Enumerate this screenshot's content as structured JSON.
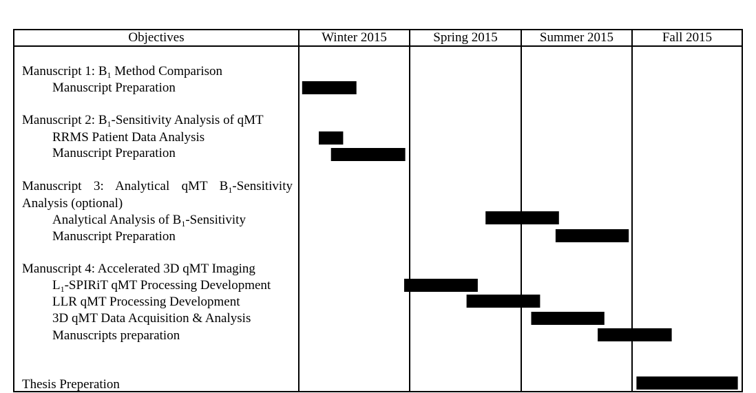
{
  "columns": {
    "objectives": "Objectives",
    "periods": [
      "Winter 2015",
      "Spring 2015",
      "Summer 2015",
      "Fall 2015"
    ]
  },
  "groups": {
    "m1": {
      "pre": "Manuscript 1: B",
      "sub": "1",
      "post": " Method Comparison"
    },
    "m2": {
      "pre": "Manuscript 2: B",
      "sub": "1",
      "post": "-Sensitivity Analysis of qMT"
    },
    "m3": {
      "pre": "Manuscript 3: Analytical qMT B",
      "sub": "1",
      "post": "-Sensitivity",
      "line2": "Analysis (optional)"
    },
    "m4": {
      "pre": "Manuscript 4: Accelerated 3D qMT Imaging"
    },
    "thesis": {
      "pre": "Thesis Preperation"
    }
  },
  "tasks": {
    "m1_prep": "Manuscript Preparation",
    "m2_rrms": "RRMS Patient Data Analysis",
    "m2_prep": "Manuscript Preparation",
    "m3_analysis": {
      "pre": "Analytical Analysis of B",
      "sub": "1",
      "post": "-Sensitivity"
    },
    "m3_prep": "Manuscript Preparation",
    "m4_l1": {
      "pre": "L",
      "sub": "1",
      "post": "-SPIRiT qMT Processing Development"
    },
    "m4_llr": "LLR qMT Processing Development",
    "m4_3d": "3D qMT Data Acquisition & Analysis",
    "m4_prep": "Manuscripts preparation"
  },
  "chart_data": {
    "type": "gantt",
    "time_unit": "quarter (Winter 2015 = 0–1, Spring 2015 = 1–2, Summer 2015 = 2–3, Fall 2015 = 3–4)",
    "x_range": [
      0,
      4
    ],
    "bars": [
      {
        "task": "Manuscript 1 — Manuscript Preparation",
        "start": 0.03,
        "end": 0.52
      },
      {
        "task": "Manuscript 2 — RRMS Patient Data Analysis",
        "start": 0.18,
        "end": 0.4
      },
      {
        "task": "Manuscript 2 — Manuscript Preparation",
        "start": 0.29,
        "end": 0.96
      },
      {
        "task": "Manuscript 3 — Analytical Analysis of B1-Sensitivity",
        "start": 1.68,
        "end": 2.34
      },
      {
        "task": "Manuscript 3 — Manuscript Preparation",
        "start": 2.31,
        "end": 2.97
      },
      {
        "task": "Manuscript 4 — L1-SPIRiT qMT Processing Development",
        "start": 0.95,
        "end": 1.61
      },
      {
        "task": "Manuscript 4 — LLR qMT Processing Development",
        "start": 1.51,
        "end": 2.17
      },
      {
        "task": "Manuscript 4 — 3D qMT Data Acquisition & Analysis",
        "start": 2.09,
        "end": 2.75
      },
      {
        "task": "Manuscript 4 — Manuscripts preparation",
        "start": 2.69,
        "end": 3.36
      },
      {
        "task": "Thesis Preperation",
        "start": 3.04,
        "end": 3.96
      }
    ]
  }
}
